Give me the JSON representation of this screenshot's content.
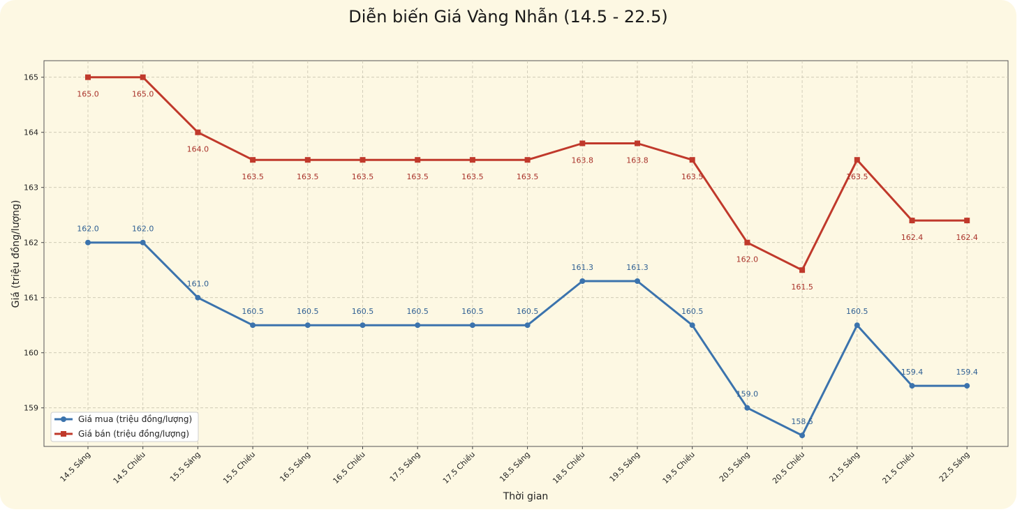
{
  "chart_data": {
    "type": "line",
    "title": "Diễn biến Giá Vàng Nhẫn (14.5 - 22.5)",
    "xlabel": "Thời gian",
    "ylabel": "Giá (triệu đồng/lượng)",
    "categories": [
      "14.5 Sáng",
      "14.5 Chiều",
      "15.5 Sáng",
      "15.5 Chiều",
      "16.5 Sáng",
      "16.5 Chiều",
      "17.5 Sáng",
      "17.5 Chiều",
      "18.5 Sáng",
      "18.5 Chiều",
      "19.5 Sáng",
      "19.5 Chiều",
      "20.5 Sáng",
      "20.5 Chiều",
      "21.5 Sáng",
      "21.5 Chiều",
      "22.5 Sáng"
    ],
    "ylim": [
      158.3,
      165.3
    ],
    "yticks": [
      159,
      160,
      161,
      162,
      163,
      164,
      165
    ],
    "grid": true,
    "legend_position": "bottom-left",
    "series": [
      {
        "name": "Giá mua (triệu đồng/lượng)",
        "color": "#3b73ad",
        "marker": "circle",
        "label_position": "above",
        "values": [
          162.0,
          162.0,
          161.0,
          160.5,
          160.5,
          160.5,
          160.5,
          160.5,
          160.5,
          161.3,
          161.3,
          160.5,
          159.0,
          158.5,
          160.5,
          159.4,
          159.4
        ]
      },
      {
        "name": "Giá bán (triệu đồng/lượng)",
        "color": "#c0392b",
        "marker": "square",
        "label_position": "below",
        "values": [
          165.0,
          165.0,
          164.0,
          163.5,
          163.5,
          163.5,
          163.5,
          163.5,
          163.5,
          163.8,
          163.8,
          163.5,
          162.0,
          161.5,
          163.5,
          162.4,
          162.4
        ]
      }
    ]
  }
}
